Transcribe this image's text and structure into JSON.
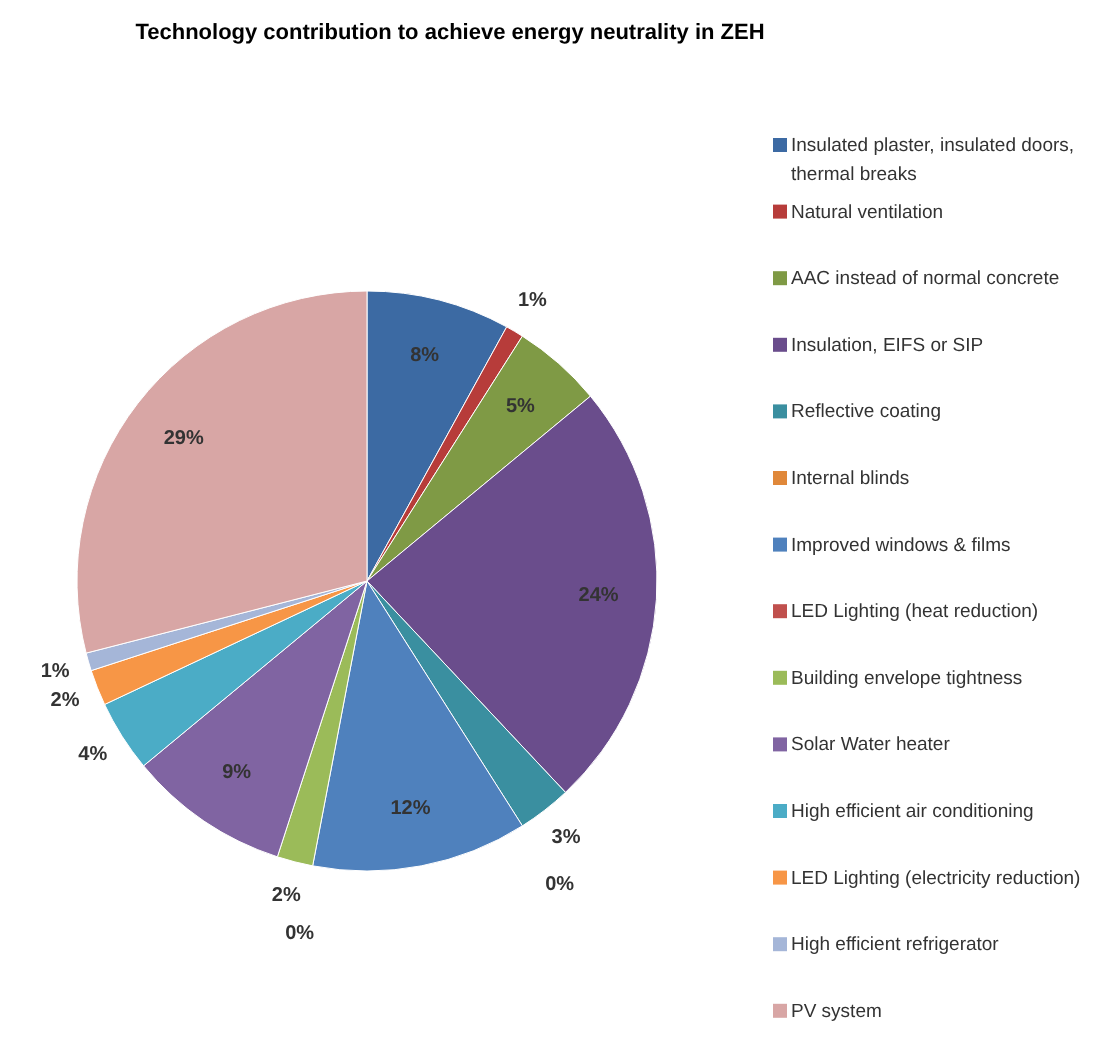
{
  "chart_data": {
    "type": "pie",
    "title": "Technology contribution to achieve energy neutrality in ZEH",
    "categories": [
      "Insulated plaster, insulated doors, thermal breaks",
      "Natural ventilation",
      "AAC instead of normal concrete",
      "Insulation, EIFS or SIP",
      "Reflective coating",
      "Internal blinds",
      "Improved windows & films",
      "LED Lighting (heat reduction)",
      "Building envelope tightness",
      "Solar Water heater",
      "High efficient air conditioning",
      "LED Lighting (electricity reduction)",
      "High efficient refrigerator",
      "PV system"
    ],
    "values": [
      8,
      1,
      5,
      24,
      3,
      0,
      12,
      0,
      2,
      9,
      4,
      2,
      1,
      29
    ],
    "colors": [
      "#3c6aa3",
      "#b73c3a",
      "#7f9a45",
      "#6a4d8c",
      "#3a8fa0",
      "#e0883a",
      "#4f81bd",
      "#c0504d",
      "#9bbb59",
      "#8064a2",
      "#4bacc6",
      "#f79646",
      "#a5b6d8",
      "#d8a6a5"
    ],
    "value_labels": [
      "8%",
      "1%",
      "5%",
      "24%",
      "3%",
      "0%",
      "12%",
      "0%",
      "2%",
      "9%",
      "4%",
      "2%",
      "1%",
      "29%"
    ],
    "legend": "right"
  }
}
